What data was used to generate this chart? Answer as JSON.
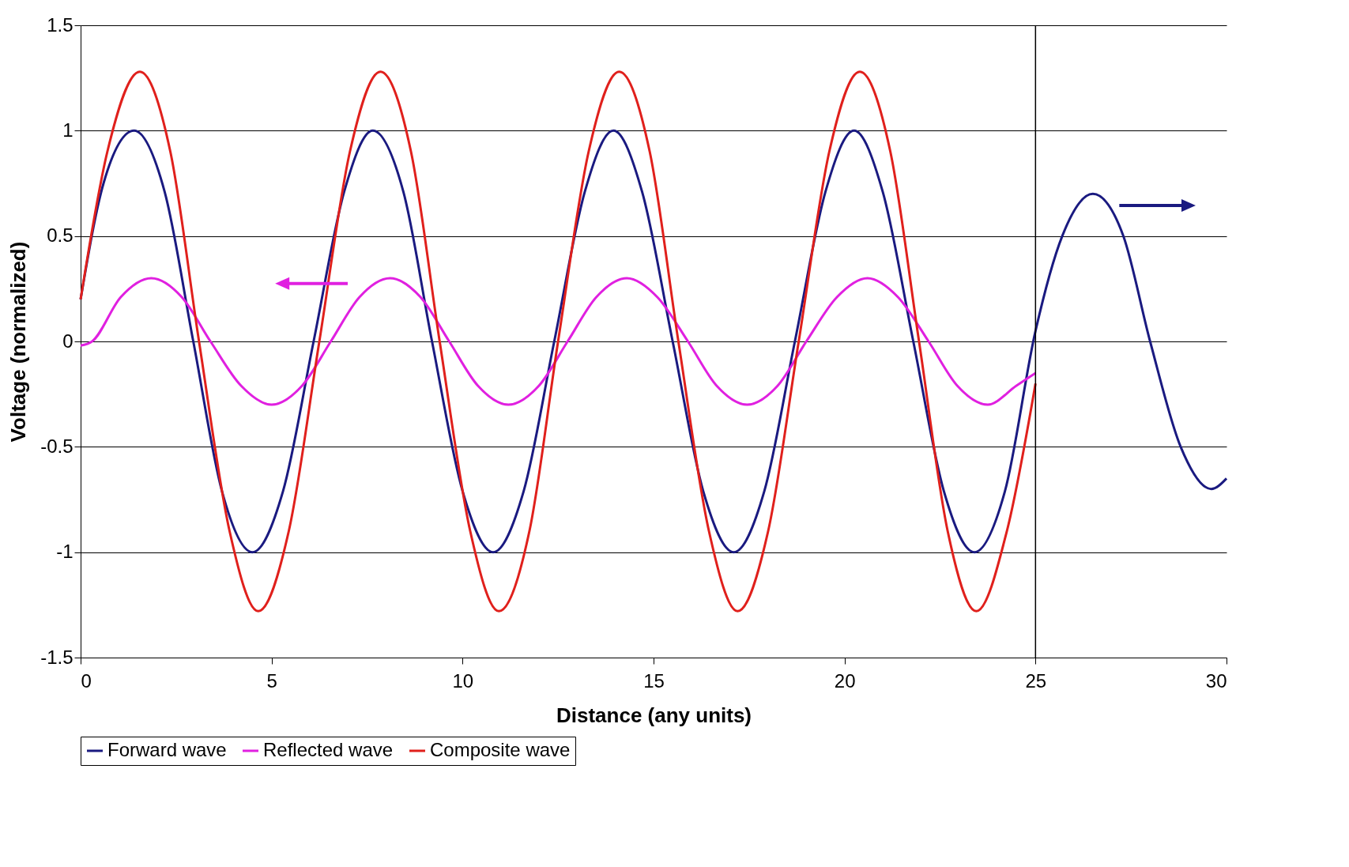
{
  "chart_data": {
    "type": "line",
    "xlabel": "Distance (any units)",
    "ylabel": "Voltage (normalized)",
    "xlim": [
      0,
      30
    ],
    "xticks": [
      0,
      5,
      10,
      15,
      20,
      25,
      30
    ],
    "ylim": [
      -1.5,
      1.5
    ],
    "yticks": [
      -1.5,
      -1,
      -0.5,
      0,
      0.5,
      1,
      1.5
    ],
    "grid": "y",
    "legend": "bottom",
    "marker": "none",
    "line_style": "solid",
    "ref_lines": [
      {
        "axis": "x",
        "value": 25,
        "color": "#000000"
      }
    ],
    "series": [
      {
        "name": "Forward wave",
        "color": "#1a1a80",
        "x": [
          0,
          0.6,
          1.4,
          2.2,
          2.95,
          3.7,
          4.5,
          5.3,
          6.1,
          6.9,
          7.65,
          8.45,
          9.2,
          10,
          10.8,
          11.6,
          12.4,
          13.2,
          13.95,
          14.7,
          15.5,
          16.3,
          17.1,
          17.9,
          18.7,
          19.5,
          20.25,
          21,
          21.8,
          22.6,
          23.4,
          24.2,
          25,
          25.7,
          26.5,
          27.3,
          28,
          28.8,
          29.6,
          30
        ],
        "values": [
          0.2,
          0.75,
          1,
          0.71,
          0,
          -0.71,
          -1,
          -0.71,
          0,
          0.71,
          1,
          0.71,
          0,
          -0.71,
          -1,
          -0.71,
          0,
          0.71,
          1,
          0.71,
          0,
          -0.71,
          -1,
          -0.71,
          0,
          0.71,
          1,
          0.71,
          0,
          -0.71,
          -1,
          -0.71,
          0.05,
          0.5,
          0.7,
          0.5,
          0,
          -0.5,
          -0.7,
          -0.65
        ]
      },
      {
        "name": "Reflected wave",
        "color": "#e020e0",
        "x": [
          0,
          0.3,
          1.05,
          1.85,
          2.65,
          3.4,
          4.2,
          5,
          5.8,
          6.55,
          7.3,
          8.1,
          8.9,
          9.65,
          10.4,
          11.2,
          12,
          12.75,
          13.5,
          14.3,
          15.1,
          15.9,
          16.65,
          17.45,
          18.25,
          19,
          19.8,
          20.6,
          21.4,
          22.2,
          22.95,
          23.75,
          24.5,
          25
        ],
        "values": [
          -0.02,
          0,
          0.21,
          0.3,
          0.21,
          0,
          -0.21,
          -0.3,
          -0.21,
          0,
          0.21,
          0.3,
          0.21,
          0,
          -0.21,
          -0.3,
          -0.21,
          0,
          0.21,
          0.3,
          0.21,
          0,
          -0.21,
          -0.3,
          -0.21,
          0,
          0.21,
          0.3,
          0.21,
          0,
          -0.21,
          -0.3,
          -0.21,
          -0.15
        ]
      },
      {
        "name": "Composite wave",
        "color": "#e0201c",
        "x": [
          0,
          0.7,
          1.55,
          2.35,
          3.1,
          3.9,
          4.65,
          5.45,
          6.25,
          7.05,
          7.85,
          8.65,
          9.4,
          10.2,
          10.95,
          11.75,
          12.5,
          13.3,
          14.1,
          14.9,
          15.65,
          16.45,
          17.2,
          18,
          18.8,
          19.6,
          20.4,
          21.2,
          21.95,
          22.7,
          23.45,
          24.25,
          25
        ],
        "values": [
          0.2,
          0.9,
          1.28,
          0.9,
          0,
          -0.9,
          -1.28,
          -0.9,
          0,
          0.9,
          1.28,
          0.9,
          0,
          -0.9,
          -1.28,
          -0.9,
          0,
          0.9,
          1.28,
          0.9,
          0,
          -0.9,
          -1.28,
          -0.9,
          0,
          0.9,
          1.28,
          0.9,
          0,
          -0.9,
          -1.28,
          -0.9,
          -0.2
        ]
      }
    ]
  }
}
